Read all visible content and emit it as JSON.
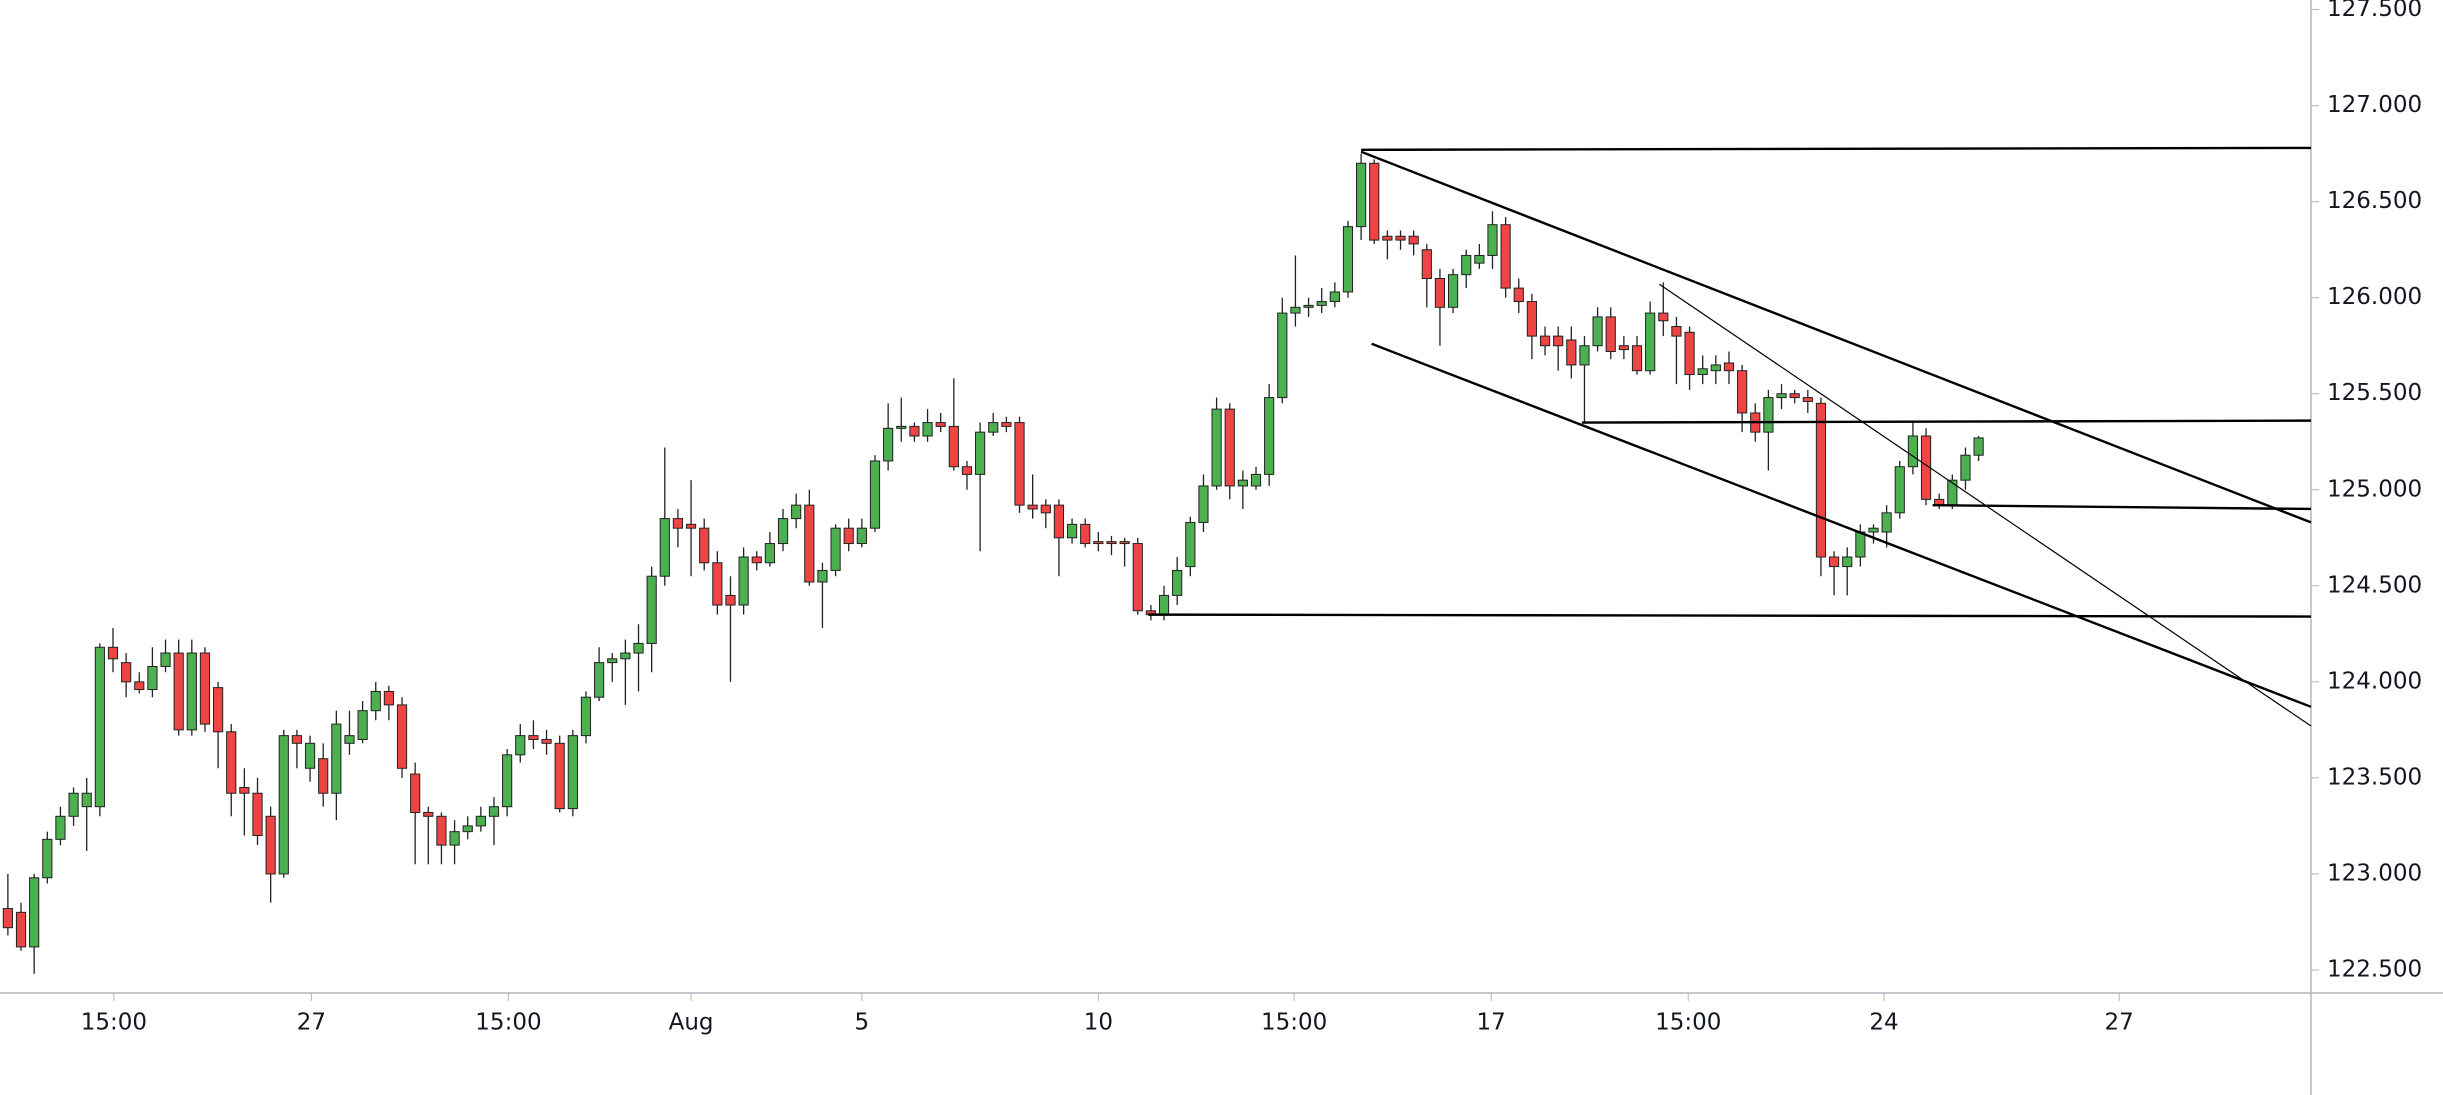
{
  "chart_data": {
    "type": "candlestick",
    "up_color": "#4caf50",
    "down_color": "#ef4444",
    "xlim": [
      -0.6,
      175.3
    ],
    "ylim": [
      122.38,
      127.55
    ],
    "yticks": [
      {
        "value": 122.5,
        "label": "122.500"
      },
      {
        "value": 123,
        "label": "123.000"
      },
      {
        "value": 123.5,
        "label": "123.500"
      },
      {
        "value": 124,
        "label": "124.000"
      },
      {
        "value": 124.5,
        "label": "124.500"
      },
      {
        "value": 125,
        "label": "125.000"
      },
      {
        "value": 125.5,
        "label": "125.500"
      },
      {
        "value": 126,
        "label": "126.000"
      },
      {
        "value": 126.5,
        "label": "126.500"
      },
      {
        "value": 127,
        "label": "127.000"
      },
      {
        "value": 127.5,
        "label": "127.500"
      }
    ],
    "xticks": [
      {
        "value": 8.07,
        "label": "15:00"
      },
      {
        "value": 23.1,
        "label": "27"
      },
      {
        "value": 38.1,
        "label": "15:00"
      },
      {
        "value": 52.0,
        "label": "Aug"
      },
      {
        "value": 65.0,
        "label": "5"
      },
      {
        "value": 83.0,
        "label": "10"
      },
      {
        "value": 97.9,
        "label": "15:00"
      },
      {
        "value": 112.9,
        "label": "17"
      },
      {
        "value": 127.9,
        "label": "15:00"
      },
      {
        "value": 142.8,
        "label": "24"
      },
      {
        "value": 160.7,
        "label": "27"
      }
    ],
    "open": [
      122.82,
      122.8,
      122.62,
      122.98,
      123.18,
      123.3,
      123.35,
      123.35,
      124.18,
      124.1,
      124.0,
      123.96,
      124.08,
      124.15,
      123.75,
      124.15,
      123.97,
      123.74,
      123.45,
      123.42,
      123.3,
      123.0,
      123.72,
      123.55,
      123.6,
      123.42,
      123.68,
      123.7,
      123.85,
      123.95,
      123.88,
      123.52,
      123.32,
      123.3,
      123.15,
      123.22,
      123.25,
      123.3,
      123.35,
      123.62,
      123.72,
      123.7,
      123.68,
      123.34,
      123.72,
      123.92,
      124.1,
      124.12,
      124.15,
      124.2,
      124.55,
      124.85,
      124.82,
      124.8,
      124.62,
      124.45,
      124.4,
      124.65,
      124.62,
      124.72,
      124.85,
      124.92,
      124.52,
      124.58,
      124.8,
      124.72,
      124.8,
      125.15,
      125.32,
      125.33,
      125.28,
      125.35,
      125.33,
      125.12,
      125.08,
      125.3,
      125.35,
      125.35,
      124.92,
      124.92,
      124.92,
      124.75,
      124.82,
      124.73,
      124.73,
      124.73,
      124.72,
      124.37,
      124.35,
      124.45,
      124.6,
      124.83,
      125.02,
      125.42,
      125.02,
      125.02,
      125.08,
      125.48,
      125.92,
      125.95,
      125.96,
      125.98,
      126.03,
      126.37,
      126.7,
      126.32,
      126.32,
      126.32,
      126.25,
      126.1,
      125.95,
      126.12,
      126.18,
      126.22,
      126.38,
      126.05,
      125.98,
      125.8,
      125.8,
      125.78,
      125.65,
      125.75,
      125.9,
      125.75,
      125.75,
      125.62,
      125.92,
      125.85,
      125.82,
      125.6,
      125.62,
      125.66,
      125.62,
      125.4,
      125.3,
      125.48,
      125.5,
      125.48,
      125.45,
      124.65,
      124.6,
      124.65,
      124.78,
      124.78,
      124.88,
      125.12,
      125.28,
      124.95,
      124.92,
      125.05,
      125.18
    ],
    "high": [
      123.0,
      122.85,
      123.0,
      123.22,
      123.35,
      123.45,
      123.5,
      124.2,
      124.28,
      124.15,
      124.05,
      124.18,
      124.22,
      124.22,
      124.22,
      124.18,
      124.0,
      123.78,
      123.55,
      123.5,
      123.35,
      123.75,
      123.75,
      123.72,
      123.68,
      123.85,
      123.85,
      123.9,
      124.0,
      123.98,
      123.92,
      123.58,
      123.35,
      123.32,
      123.28,
      123.3,
      123.35,
      123.4,
      123.65,
      123.78,
      123.8,
      123.75,
      123.72,
      123.75,
      123.95,
      124.18,
      124.15,
      124.22,
      124.3,
      124.6,
      125.22,
      124.9,
      125.05,
      124.85,
      124.68,
      124.55,
      124.7,
      124.68,
      124.78,
      124.9,
      124.98,
      125.0,
      124.62,
      124.82,
      124.85,
      124.85,
      125.18,
      125.45,
      125.48,
      125.35,
      125.42,
      125.4,
      125.58,
      125.15,
      125.35,
      125.4,
      125.38,
      125.38,
      125.08,
      124.95,
      124.95,
      124.85,
      124.85,
      124.78,
      124.76,
      124.75,
      124.75,
      124.4,
      124.5,
      124.65,
      124.86,
      125.08,
      125.48,
      125.45,
      125.1,
      125.12,
      125.55,
      126.0,
      126.22,
      126.0,
      126.05,
      126.08,
      126.4,
      126.75,
      126.72,
      126.35,
      126.35,
      126.35,
      126.28,
      126.15,
      126.15,
      126.25,
      126.28,
      126.45,
      126.42,
      126.1,
      126.02,
      125.85,
      125.85,
      125.85,
      125.8,
      125.95,
      125.95,
      125.8,
      125.8,
      125.98,
      126.08,
      125.9,
      125.85,
      125.7,
      125.7,
      125.72,
      125.65,
      125.45,
      125.52,
      125.55,
      125.52,
      125.52,
      125.48,
      124.68,
      124.7,
      124.82,
      124.82,
      124.92,
      125.15,
      125.35,
      125.32,
      124.98,
      125.08,
      125.22,
      125.28
    ],
    "low": [
      122.68,
      122.6,
      122.48,
      122.95,
      123.15,
      123.25,
      123.12,
      123.3,
      124.05,
      123.92,
      123.94,
      123.92,
      124.05,
      123.72,
      123.72,
      123.74,
      123.55,
      123.3,
      123.2,
      123.15,
      122.85,
      122.98,
      123.55,
      123.48,
      123.35,
      123.28,
      123.62,
      123.68,
      123.8,
      123.8,
      123.5,
      123.05,
      123.05,
      123.05,
      123.05,
      123.18,
      123.22,
      123.15,
      123.3,
      123.58,
      123.65,
      123.62,
      123.32,
      123.3,
      123.68,
      123.9,
      124.0,
      123.88,
      123.95,
      124.05,
      124.5,
      124.7,
      124.55,
      124.58,
      124.35,
      124.0,
      124.35,
      124.58,
      124.6,
      124.68,
      124.8,
      124.5,
      124.28,
      124.55,
      124.68,
      124.7,
      124.78,
      125.1,
      125.25,
      125.25,
      125.25,
      125.3,
      125.1,
      125.0,
      124.68,
      125.28,
      125.3,
      124.88,
      124.85,
      124.8,
      124.55,
      124.72,
      124.7,
      124.68,
      124.66,
      124.6,
      124.35,
      124.32,
      124.32,
      124.4,
      124.55,
      124.78,
      125.0,
      124.95,
      124.9,
      125.0,
      125.02,
      125.45,
      125.85,
      125.9,
      125.92,
      125.95,
      126.0,
      126.3,
      126.28,
      126.2,
      126.25,
      126.22,
      125.95,
      125.75,
      125.92,
      126.05,
      126.15,
      126.15,
      126.0,
      125.92,
      125.68,
      125.7,
      125.62,
      125.58,
      125.35,
      125.72,
      125.68,
      125.68,
      125.6,
      125.6,
      125.8,
      125.55,
      125.52,
      125.55,
      125.55,
      125.55,
      125.3,
      125.25,
      125.1,
      125.42,
      125.45,
      125.4,
      124.55,
      124.45,
      124.45,
      124.6,
      124.72,
      124.7,
      124.85,
      125.08,
      124.92,
      124.9,
      124.9,
      125.0,
      125.15
    ],
    "close": [
      122.72,
      122.62,
      122.98,
      123.18,
      123.3,
      123.42,
      123.42,
      124.18,
      124.12,
      124.0,
      123.96,
      124.08,
      124.15,
      123.75,
      124.15,
      123.78,
      123.74,
      123.42,
      123.42,
      123.2,
      123.0,
      123.72,
      123.68,
      123.68,
      123.42,
      123.78,
      123.72,
      123.85,
      123.95,
      123.88,
      123.55,
      123.32,
      123.3,
      123.15,
      123.22,
      123.25,
      123.3,
      123.35,
      123.62,
      123.72,
      123.7,
      123.68,
      123.34,
      123.72,
      123.92,
      124.1,
      124.12,
      124.15,
      124.2,
      124.55,
      124.85,
      124.8,
      124.8,
      124.62,
      124.4,
      124.4,
      124.65,
      124.62,
      124.72,
      124.85,
      124.92,
      124.52,
      124.58,
      124.8,
      124.72,
      124.8,
      125.15,
      125.32,
      125.33,
      125.28,
      125.35,
      125.33,
      125.12,
      125.08,
      125.3,
      125.35,
      125.33,
      124.92,
      124.9,
      124.88,
      124.75,
      124.82,
      124.72,
      124.72,
      124.72,
      124.72,
      124.37,
      124.35,
      124.45,
      124.58,
      124.83,
      125.02,
      125.42,
      125.02,
      125.05,
      125.08,
      125.48,
      125.92,
      125.95,
      125.96,
      125.98,
      126.03,
      126.37,
      126.7,
      126.3,
      126.3,
      126.3,
      126.28,
      126.1,
      125.95,
      126.12,
      126.22,
      126.22,
      126.38,
      126.05,
      125.98,
      125.8,
      125.75,
      125.75,
      125.65,
      125.75,
      125.9,
      125.72,
      125.73,
      125.62,
      125.92,
      125.88,
      125.8,
      125.6,
      125.63,
      125.65,
      125.62,
      125.4,
      125.3,
      125.48,
      125.5,
      125.48,
      125.46,
      124.65,
      124.6,
      124.65,
      124.78,
      124.8,
      124.88,
      125.12,
      125.28,
      124.95,
      124.92,
      125.05,
      125.18,
      125.27
    ],
    "lines": [
      {
        "x": [
          103,
          175.3
        ],
        "y": [
          126.77,
          126.78
        ]
      },
      {
        "x": [
          103,
          175.3
        ],
        "y": [
          126.76,
          124.83
        ]
      },
      {
        "x": [
          103.8,
          175.3
        ],
        "y": [
          125.76,
          123.87
        ]
      },
      {
        "x": [
          125.7,
          175.3
        ],
        "y": [
          126.07,
          123.77
        ]
      },
      {
        "x": [
          119.8,
          175.3
        ],
        "y": [
          125.35,
          125.36
        ]
      },
      {
        "x": [
          146.5,
          175.3
        ],
        "y": [
          124.92,
          124.9
        ]
      },
      {
        "x": [
          86.8,
          175.3
        ],
        "y": [
          124.35,
          124.34
        ]
      }
    ]
  }
}
